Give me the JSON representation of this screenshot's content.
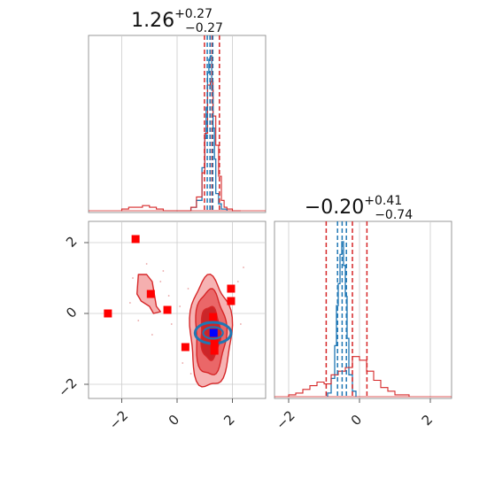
{
  "chart_data": {
    "type": "corner",
    "parameters": [
      {
        "range": [
          -3.2,
          3.2
        ],
        "ticks": [
          -2,
          0,
          2
        ],
        "tick_labels": [
          "−2",
          "0",
          "2"
        ],
        "title": {
          "main": "1.26",
          "sup": "+0.27",
          "sub": "−0.27"
        },
        "quantile_lines": {
          "red": [
            0.99,
            1.26,
            1.53
          ],
          "blue": [
            1.09,
            1.19,
            1.29
          ]
        },
        "hist_red": {
          "bins": [
            -2.0,
            -1.75,
            -1.5,
            -1.25,
            -1.0,
            -0.75,
            -0.5,
            -0.25,
            0.0,
            0.25,
            0.5,
            0.7,
            0.9,
            1.0,
            1.1,
            1.2,
            1.3,
            1.4,
            1.5,
            1.6,
            1.7,
            1.8,
            2.0,
            2.3
          ],
          "values": [
            0.01,
            0.02,
            0.02,
            0.03,
            0.02,
            0.01,
            0.0,
            0.0,
            0.0,
            0.0,
            0.02,
            0.08,
            0.22,
            0.45,
            0.73,
            0.75,
            0.55,
            0.38,
            0.2,
            0.06,
            0.02,
            0.01,
            0.0
          ]
        },
        "hist_blue": {
          "bins": [
            0.5,
            0.7,
            0.9,
            1.0,
            1.05,
            1.1,
            1.15,
            1.2,
            1.25,
            1.3,
            1.35,
            1.4,
            1.5,
            1.6,
            1.8
          ],
          "values": [
            0.02,
            0.06,
            0.25,
            0.42,
            0.6,
            0.8,
            0.88,
            0.9,
            0.7,
            0.48,
            0.3,
            0.1,
            0.04,
            0.01
          ]
        }
      },
      {
        "range": [
          -2.4,
          2.6
        ],
        "ticks": [
          -2,
          0,
          2
        ],
        "tick_labels": [
          "−2",
          "0",
          "2"
        ],
        "title": {
          "main": "−0.20",
          "sup": "+0.41",
          "sub": "−0.74"
        },
        "quantile_lines": {
          "red": [
            -0.94,
            -0.2,
            0.21
          ],
          "blue": [
            -0.62,
            -0.49,
            -0.37
          ]
        },
        "hist_red": {
          "bins": [
            -2.0,
            -1.8,
            -1.6,
            -1.4,
            -1.2,
            -1.0,
            -0.8,
            -0.6,
            -0.4,
            -0.2,
            0.0,
            0.2,
            0.4,
            0.6,
            0.8,
            1.0,
            1.2,
            1.4
          ],
          "values": [
            0.01,
            0.02,
            0.04,
            0.06,
            0.08,
            0.07,
            0.12,
            0.14,
            0.16,
            0.22,
            0.2,
            0.14,
            0.09,
            0.05,
            0.03,
            0.01,
            0.01
          ]
        },
        "hist_blue": {
          "bins": [
            -0.9,
            -0.8,
            -0.7,
            -0.65,
            -0.6,
            -0.55,
            -0.5,
            -0.45,
            -0.4,
            -0.35,
            -0.3,
            -0.2,
            -0.1
          ],
          "values": [
            0.02,
            0.1,
            0.28,
            0.5,
            0.62,
            0.78,
            0.85,
            0.72,
            0.55,
            0.32,
            0.12,
            0.03
          ]
        }
      }
    ],
    "joint": {
      "x_range": [
        -3.2,
        3.2
      ],
      "y_range": [
        -2.4,
        2.6
      ],
      "red_contours": [
        {
          "cx": 1.2,
          "cy": -0.55,
          "rx": 0.75,
          "ry": 1.55
        },
        {
          "cx": 1.2,
          "cy": -0.55,
          "rx": 0.55,
          "ry": 1.2
        },
        {
          "cx": 1.2,
          "cy": -0.55,
          "rx": 0.35,
          "ry": 0.75
        }
      ],
      "red_blob": [
        [
          -1.4,
          1.1
        ],
        [
          -1.1,
          1.1
        ],
        [
          -0.9,
          0.9
        ],
        [
          -0.75,
          0.2
        ],
        [
          -0.6,
          0.05
        ],
        [
          -0.85,
          0.0
        ],
        [
          -1.0,
          0.2
        ],
        [
          -1.3,
          0.35
        ],
        [
          -1.45,
          0.55
        ]
      ],
      "blue_contour": {
        "cx": 1.3,
        "cy": -0.55,
        "rx": 0.65,
        "ry": 0.3
      },
      "red_markers": [
        [
          -2.5,
          0.0
        ],
        [
          -1.5,
          2.1
        ],
        [
          -0.95,
          0.55
        ],
        [
          -0.35,
          0.1
        ],
        [
          0.3,
          -0.95
        ],
        [
          1.3,
          -0.1
        ],
        [
          1.35,
          -0.85
        ],
        [
          1.35,
          -1.05
        ],
        [
          1.95,
          0.7
        ],
        [
          1.95,
          0.35
        ]
      ],
      "blue_marker": [
        1.32,
        -0.55
      ],
      "scatter_points": [
        [
          -1.7,
          0.3
        ],
        [
          -1.1,
          1.4
        ],
        [
          -0.5,
          1.2
        ],
        [
          -1.4,
          -0.2
        ],
        [
          -0.2,
          -0.3
        ],
        [
          0.4,
          0.7
        ],
        [
          0.2,
          -1.4
        ],
        [
          -0.9,
          -0.6
        ],
        [
          2.2,
          0.9
        ],
        [
          2.3,
          -0.3
        ],
        [
          -0.6,
          0.9
        ],
        [
          0.1,
          0.2
        ],
        [
          -1.6,
          1.0
        ],
        [
          2.4,
          1.3
        ],
        [
          0.5,
          -1.7
        ],
        [
          -0.3,
          0.5
        ]
      ]
    },
    "colors": {
      "red": "#d62728",
      "red_fill": "#f4a6a6",
      "red_mid": "#e8595a",
      "blue": "#1f77b4",
      "marker_red": "#ff0000",
      "marker_blue": "#0000ff"
    }
  }
}
